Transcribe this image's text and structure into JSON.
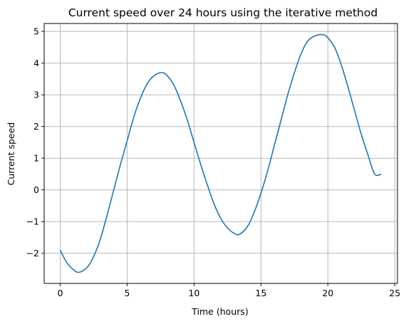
{
  "chart_data": {
    "type": "line",
    "title": "Current speed over 24 hours using the iterative method",
    "xlabel": "Time (hours)",
    "ylabel": "Current speed",
    "xlim": [
      -1.2,
      25.2
    ],
    "ylim": [
      -2.95,
      5.25
    ],
    "xticks": [
      0,
      5,
      10,
      15,
      20,
      25
    ],
    "yticks": [
      -2,
      -1,
      0,
      1,
      2,
      3,
      4,
      5
    ],
    "xtick_labels": [
      "0",
      "5",
      "10",
      "15",
      "20",
      "25"
    ],
    "ytick_labels": [
      "−2",
      "−1",
      "0",
      "1",
      "2",
      "3",
      "4",
      "5"
    ],
    "grid": true,
    "legend": "none",
    "series": [
      {
        "color": "#1f77b4",
        "x": [
          0,
          0.5,
          1,
          1.4,
          2,
          2.5,
          3,
          3.5,
          4,
          4.5,
          5,
          5.5,
          6,
          6.5,
          7,
          7.6,
          8,
          8.5,
          9,
          9.5,
          10,
          10.5,
          11,
          11.5,
          12,
          12.5,
          13,
          13.4,
          14,
          14.5,
          15,
          15.5,
          16,
          16.5,
          17,
          17.5,
          18,
          18.5,
          19,
          19.6,
          20,
          20.5,
          21,
          21.5,
          22,
          22.5,
          23,
          23.5,
          24
        ],
        "y": [
          -1.9,
          -2.3,
          -2.52,
          -2.6,
          -2.45,
          -2.1,
          -1.55,
          -0.8,
          0.0,
          0.8,
          1.55,
          2.3,
          2.9,
          3.35,
          3.6,
          3.7,
          3.6,
          3.3,
          2.8,
          2.2,
          1.5,
          0.8,
          0.15,
          -0.45,
          -0.9,
          -1.2,
          -1.37,
          -1.4,
          -1.15,
          -0.7,
          -0.1,
          0.6,
          1.4,
          2.2,
          3.0,
          3.7,
          4.3,
          4.7,
          4.85,
          4.9,
          4.8,
          4.5,
          3.95,
          3.25,
          2.5,
          1.75,
          1.1,
          0.5,
          0.5
        ]
      }
    ]
  }
}
